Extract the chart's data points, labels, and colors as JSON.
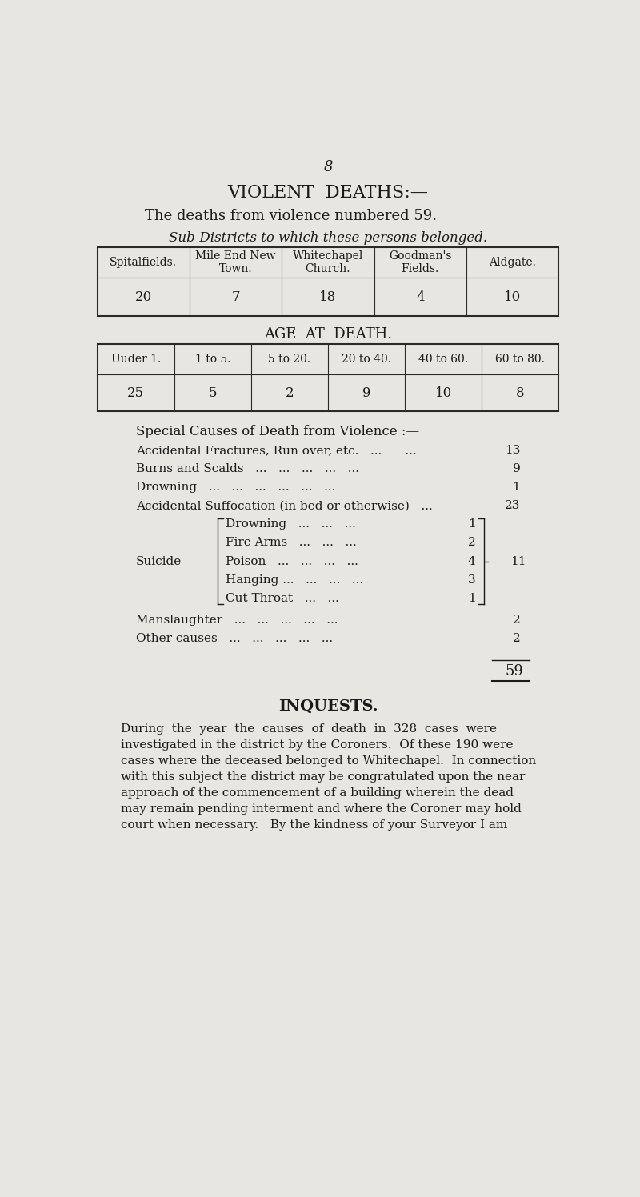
{
  "page_number": "8",
  "bg_color": "#e8e6e0",
  "title": "VIOLENT  DEATHS:—",
  "subtitle": "The deaths from violence numbered 59.",
  "table1_title": "Sub-Districts to which these persons belonged.",
  "table1_headers": [
    "Spitalfields.",
    "Mile End New\nTown.",
    "Whitechapel\nChurch.",
    "Goodman's\nFields.",
    "Aldgate."
  ],
  "table1_values": [
    "20",
    "7",
    "18",
    "4",
    "10"
  ],
  "table2_title": "AGE  AT  DEATH.",
  "table2_headers": [
    "Uuder 1.",
    "1 to 5.",
    "5 to 20.",
    "20 to 40.",
    "40 to 60.",
    "60 to 80."
  ],
  "table2_values": [
    "25",
    "5",
    "2",
    "9",
    "10",
    "8"
  ],
  "special_title": "Special Causes of Death from Violence :—",
  "suicide_label": "Suicide",
  "suicide_total": "11",
  "total": "59",
  "inquests_title": "INQUESTS.",
  "inquests_lines": [
    "During  the  year  the  causes  of  death  in  328  cases  were",
    "investigated in the district by the Coroners.  Of these 190 were",
    "cases where the deceased belonged to Whitechapel.  In connection",
    "with this subject the district may be congratulated upon the near",
    "approach of the commencement of a building wherein the dead",
    "may remain pending interment and where the Coroner may hold",
    "court when necessary.   By the kindness of your Surveyor I am"
  ],
  "text_color": "#1a1a1a",
  "table_border_color": "#2a2a2a",
  "special_lines": [
    {
      "text": "Accidental Fractures, Run over, etc.   ...      ...",
      "value": "13"
    },
    {
      "text": "Burns and Scalds   ...   ...   ...   ...   ...",
      "value": "9"
    },
    {
      "text": "Drowning   ...   ...   ...   ...   ...   ...",
      "value": "1"
    },
    {
      "text": "Accidental Suffocation (in bed or otherwise)   ...",
      "value": "23"
    }
  ],
  "suicide_lines": [
    {
      "text": "Drowning   ...   ...   ...",
      "value": "1"
    },
    {
      "text": "Fire Arms   ...   ...   ...",
      "value": "2"
    },
    {
      "text": "Poison   ...   ...   ...   ...",
      "value": "4"
    },
    {
      "text": "Hanging ...   ...   ...   ...",
      "value": "3"
    },
    {
      "text": "Cut Throat   ...   ...",
      "value": "1"
    }
  ],
  "other_lines": [
    {
      "text": "Manslaughter   ...   ...   ...   ...   ...",
      "value": "2"
    },
    {
      "text": "Other causes   ...   ...   ...   ...   ...",
      "value": "2"
    }
  ]
}
